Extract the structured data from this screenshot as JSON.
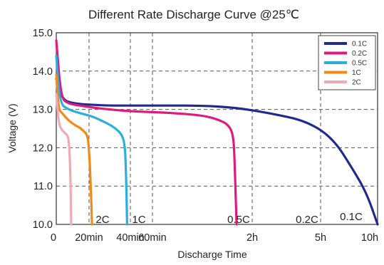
{
  "chart_data": {
    "type": "line",
    "title": "Different Rate Discharge Curve @25℃",
    "xlabel": "Discharge Time",
    "ylabel": "Voltage (V)",
    "ylim": [
      10.0,
      15.0
    ],
    "yticks": [
      "15.0",
      "14.0",
      "13.0",
      "12.0",
      "11.0",
      "10.0"
    ],
    "xtick_labels": [
      "0",
      "20min",
      "40min",
      "60min",
      "2h",
      "5h",
      "10h"
    ],
    "grid": true,
    "legend_position": "top-right",
    "series": [
      {
        "name": "0.1C",
        "color": "#1f2a8c",
        "points": [
          [
            0,
            13.8
          ],
          [
            10,
            13.25
          ],
          [
            30,
            13.15
          ],
          [
            60,
            13.12
          ],
          [
            89,
            13.1
          ],
          [
            125,
            13.1
          ],
          [
            183,
            13.1
          ],
          [
            244,
            13.1
          ],
          [
            300,
            13.05
          ],
          [
            360,
            12.9
          ],
          [
            420,
            12.7
          ],
          [
            465,
            12.25
          ],
          [
            500,
            11.4
          ],
          [
            522,
            10.8
          ],
          [
            540,
            10.0
          ]
        ]
      },
      {
        "name": "0.2C",
        "color": "#e0197e",
        "points": [
          [
            0,
            14.8
          ],
          [
            8,
            13.3
          ],
          [
            20,
            13.15
          ],
          [
            40,
            13.1
          ],
          [
            60,
            13.05
          ],
          [
            89,
            13.0
          ],
          [
            125,
            12.95
          ],
          [
            183,
            12.92
          ],
          [
            244,
            12.85
          ],
          [
            270,
            12.75
          ],
          [
            290,
            12.6
          ],
          [
            298,
            12.3
          ],
          [
            300,
            11.5
          ],
          [
            303,
            10.0
          ]
        ]
      },
      {
        "name": "0.5C",
        "color": "#2aaee0",
        "points": [
          [
            0,
            14.4
          ],
          [
            6,
            13.15
          ],
          [
            20,
            13.0
          ],
          [
            40,
            12.9
          ],
          [
            60,
            12.82
          ],
          [
            70,
            12.75
          ],
          [
            80,
            12.68
          ],
          [
            90,
            12.6
          ],
          [
            100,
            12.5
          ],
          [
            110,
            12.35
          ],
          [
            115,
            12.1
          ],
          [
            117,
            11.5
          ],
          [
            119,
            10.0
          ]
        ]
      },
      {
        "name": "1C",
        "color": "#f08a1a",
        "points": [
          [
            0,
            13.9
          ],
          [
            4,
            13.0
          ],
          [
            10,
            12.9
          ],
          [
            20,
            12.72
          ],
          [
            30,
            12.6
          ],
          [
            40,
            12.52
          ],
          [
            45,
            12.45
          ],
          [
            52,
            12.35
          ],
          [
            55,
            12.0
          ],
          [
            58,
            11.0
          ],
          [
            60,
            10.0
          ]
        ]
      },
      {
        "name": "2C",
        "color": "#f0aab4",
        "points": [
          [
            0,
            13.4
          ],
          [
            3,
            12.8
          ],
          [
            6,
            12.55
          ],
          [
            10,
            12.45
          ],
          [
            15,
            12.38
          ],
          [
            20,
            12.3
          ],
          [
            22,
            12.0
          ],
          [
            24,
            11.2
          ],
          [
            25,
            10.0
          ]
        ]
      }
    ],
    "curve_labels": [
      "2C",
      "1C",
      "0.5C",
      "0.2C",
      "0.1C"
    ]
  }
}
